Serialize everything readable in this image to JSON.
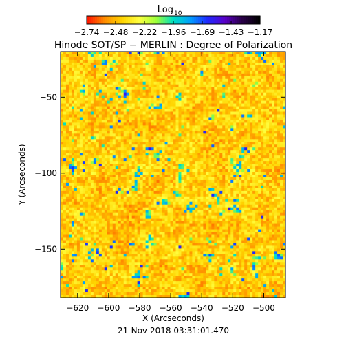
{
  "colorbar": {
    "label": "Log",
    "label_subscript": "10",
    "tick_labels": [
      "−2.74",
      "−2.48",
      "−2.22",
      "−1.96",
      "−1.69",
      "−1.43",
      "−1.17"
    ],
    "range": [
      -2.74,
      -1.17
    ],
    "colormap": [
      "#ff1a00",
      "#ff8c00",
      "#ffd400",
      "#ffff40",
      "#9cff3a",
      "#00e0c0",
      "#009cff",
      "#1e2aff",
      "#5a00c8",
      "#2a0048",
      "#000000"
    ]
  },
  "chart_data": {
    "type": "heatmap",
    "title": "Hinode SOT/SP − MERLIN : Degree of Polarization",
    "xlabel": "X (Arcseconds)",
    "ylabel": "Y (Arcseconds)",
    "x_ticks": [
      -620,
      -600,
      -580,
      -560,
      -540,
      -520,
      -500
    ],
    "y_ticks": [
      -50,
      -100,
      -150
    ],
    "x_tick_labels": [
      "−620",
      "−600",
      "−580",
      "−560",
      "−540",
      "−520",
      "−500"
    ],
    "y_tick_labels": [
      "−50",
      "−100",
      "−150"
    ],
    "xlim": [
      -631,
      -486
    ],
    "ylim": [
      -182,
      -20
    ],
    "value_range_log10": [
      -2.74,
      -1.17
    ],
    "dominant_values": "mostly -2.74 to -2.3 (red/orange/yellow) with scattered patches near -2.0 to -1.4 (green/cyan/blue)"
  },
  "footer": {
    "timestamp": "21-Nov-2018 03:31:01.470"
  }
}
